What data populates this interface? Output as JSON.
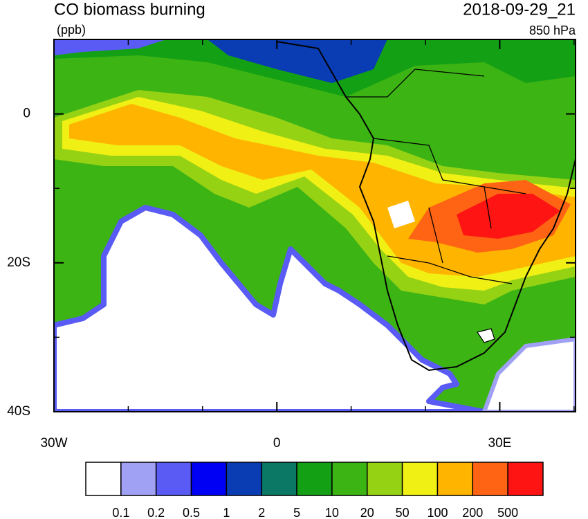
{
  "header": {
    "title": "CO biomass burning",
    "units": "(ppb)",
    "datetime": "2018-09-29_21",
    "level": "850 hPa"
  },
  "axes": {
    "xlim": [
      -30,
      40.2
    ],
    "ylim": [
      -40,
      10
    ],
    "xticks": [
      {
        "value": -30,
        "label": "30W"
      },
      0,
      {
        "value": 30,
        "label": "30E"
      }
    ],
    "yticks": [
      0,
      {
        "value": -20,
        "label": "20S"
      },
      {
        "value": -40,
        "label": "40S"
      }
    ],
    "xminor": [
      -20,
      -10,
      10,
      20,
      40
    ],
    "yminor": [
      10,
      -10,
      -30
    ]
  },
  "colorbar": {
    "colors": [
      "#ffffff",
      "#a0a0f5",
      "#5a5af5",
      "#0000f5",
      "#0a3cb4",
      "#0a7864",
      "#14a014",
      "#3cb414",
      "#96d214",
      "#f0f014",
      "#ffb400",
      "#ff6414",
      "#ff1414"
    ],
    "labels": [
      0.1,
      0.2,
      0.5,
      1,
      2,
      5,
      10,
      20,
      50,
      100,
      200,
      500
    ]
  }
}
